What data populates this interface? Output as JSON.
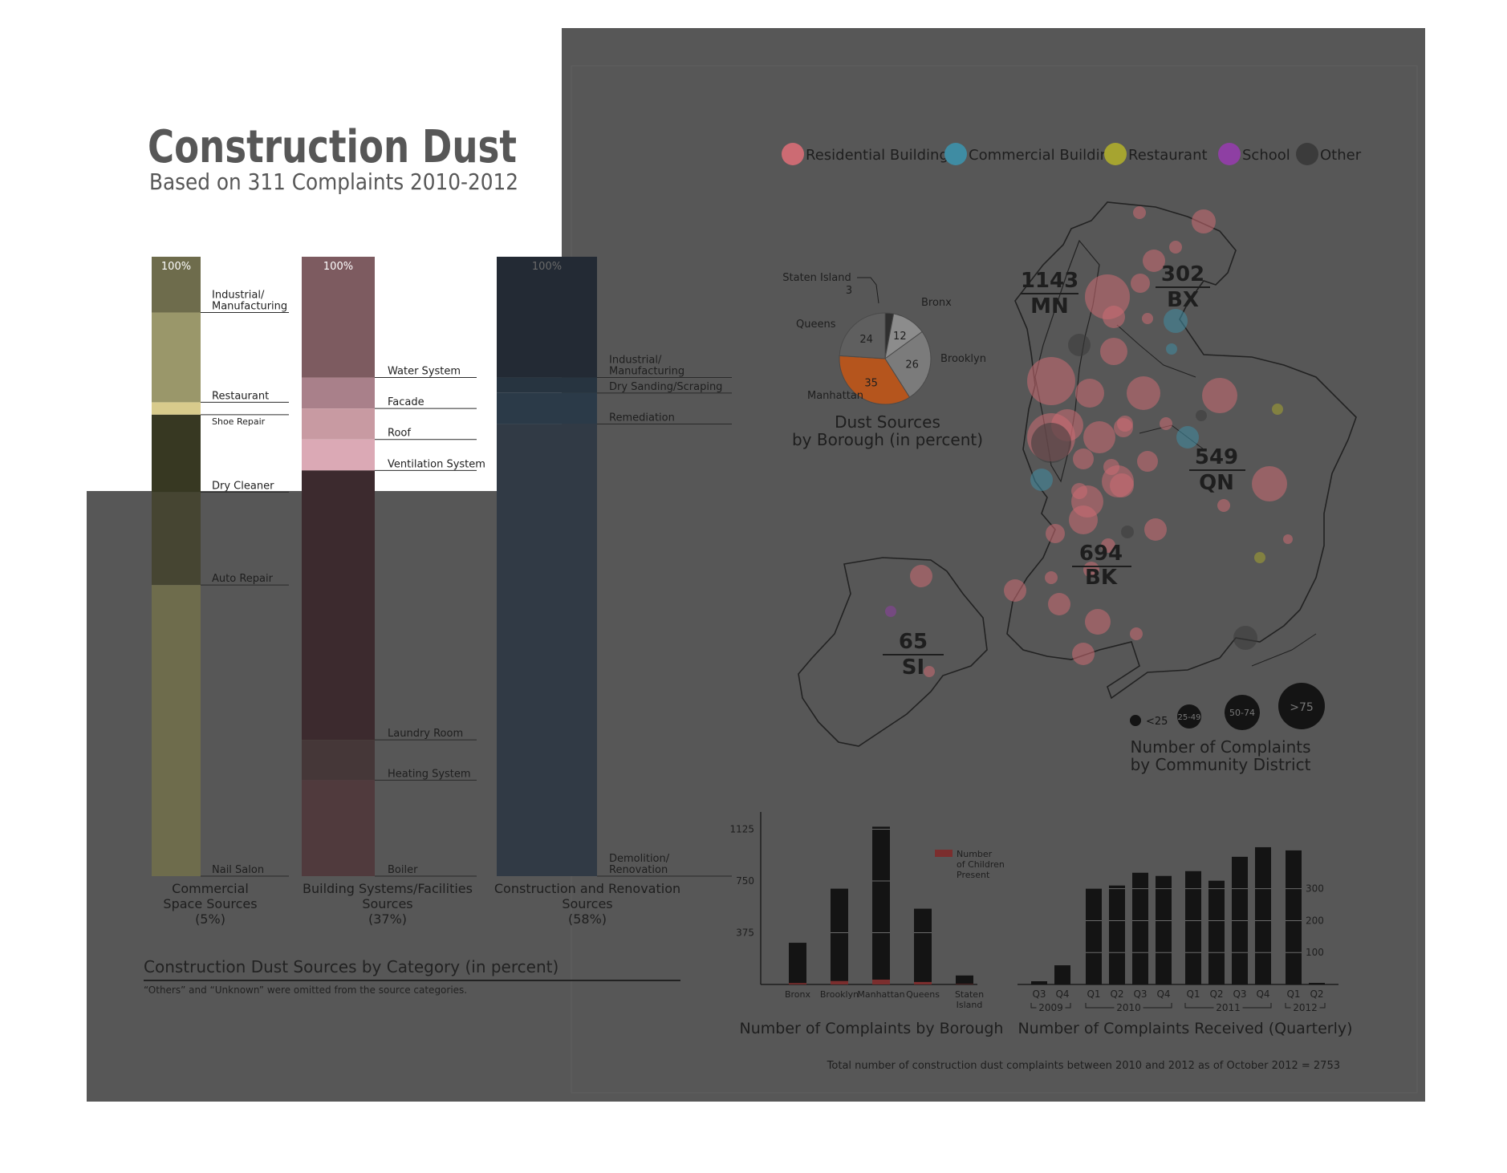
{
  "header": {
    "title": "Construction Dust",
    "subtitle": "Based on 311 Complaints 2010-2012"
  },
  "colors": {
    "panel": "#575757",
    "commercial": [
      "#6e6c4c",
      "#9a976a",
      "#d8cb8c",
      "#373822",
      "#464532"
    ],
    "building": [
      "#7d5b60",
      "#a9808a",
      "#c89aa2",
      "#dba9b5",
      "#3c2a2e",
      "#453738",
      "#503a3d"
    ],
    "construction": [
      "#232a34",
      "#273440",
      "#2b3a48",
      "#313a45"
    ],
    "pie": {
      "staten_island": "#2f2f2f",
      "bronx": "#8c8c8c",
      "brooklyn": "#7b7b7b",
      "manhattan": "#b5551d",
      "queens": "#5f5f5f"
    },
    "legend": {
      "residential": "#cc6b73",
      "commercial": "#3f8ca3",
      "restaurant": "#a6a430",
      "school": "#8e3fa3",
      "other": "#3b3b3b"
    },
    "bars": "#141414",
    "children": "#7b2e2e"
  },
  "left_section": {
    "title": "Construction Dust Sources by Category (in percent)",
    "note": "“Others” and “Unknown” were omitted from the source categories."
  },
  "map": {
    "legend": [
      "Residential Building",
      "Commercial Building",
      "Restaurant",
      "School",
      "Other"
    ],
    "boroughs": [
      {
        "count": "1143",
        "abbr": "MN"
      },
      {
        "count": "302",
        "abbr": "BX"
      },
      {
        "count": "549",
        "abbr": "QN"
      },
      {
        "count": "694",
        "abbr": "BK"
      },
      {
        "count": "65",
        "abbr": "SI"
      }
    ],
    "size_legend": [
      "<25",
      "25-49",
      "50-74",
      ">75"
    ],
    "caption_line1": "Number of Complaints",
    "caption_line2": "by Community District"
  },
  "footer": {
    "total": "Total number of construction dust complaints between 2010 and 2012 as of October 2012 = 2753"
  },
  "chart_data": [
    {
      "type": "bar",
      "title": "Construction Dust Sources by Category (in percent)",
      "stacked": true,
      "percent_label": "100%",
      "columns": [
        {
          "label_lines": [
            "Commercial",
            "Space Sources",
            "(5%)"
          ],
          "segments": [
            {
              "label": "Industrial/ Manufacturing",
              "value": 9
            },
            {
              "label": "Restaurant",
              "value": 14.5
            },
            {
              "label": "Shoe Repair",
              "value": 2
            },
            {
              "label": "Dry Cleaner",
              "value": 12.5
            },
            {
              "label": "Auto Repair",
              "value": 15
            },
            {
              "label": "Nail Salon",
              "value": 47
            }
          ]
        },
        {
          "label_lines": [
            "Building Systems/Facilities",
            "Sources",
            "(37%)"
          ],
          "segments": [
            {
              "label": "Water System",
              "value": 19.5
            },
            {
              "label": "Facade",
              "value": 5
            },
            {
              "label": "Roof",
              "value": 5
            },
            {
              "label": "Ventilation System",
              "value": 5
            },
            {
              "label": "Laundry Room",
              "value": 43.5
            },
            {
              "label": "Heating System",
              "value": 6.5
            },
            {
              "label": "Boiler",
              "value": 15.5
            }
          ]
        },
        {
          "label_lines": [
            "Construction and Renovation",
            "Sources",
            "(58%)"
          ],
          "segments": [
            {
              "label": "Industrial/ Manufacturing",
              "value": 19.5
            },
            {
              "label": "Dry Sanding/Scraping",
              "value": 2.5
            },
            {
              "label": "Remediation",
              "value": 5
            },
            {
              "label": "Demolition/ Renovation",
              "value": 73
            }
          ]
        }
      ]
    },
    {
      "type": "pie",
      "title_lines": [
        "Dust Sources",
        "by Borough (in percent)"
      ],
      "slices": [
        {
          "label": "Staten Island",
          "value": 3
        },
        {
          "label": "Bronx",
          "value": 12
        },
        {
          "label": "Brooklyn",
          "value": 26
        },
        {
          "label": "Manhattan",
          "value": 35
        },
        {
          "label": "Queens",
          "value": 24
        }
      ]
    },
    {
      "type": "bar",
      "title": "Number of Complaints by Borough",
      "categories": [
        "Bronx",
        "Brooklyn",
        "Manhattan",
        "Queens",
        "Staten Island"
      ],
      "series": [
        {
          "name": "Complaints",
          "values": [
            302,
            694,
            1143,
            549,
            65
          ]
        },
        {
          "name": "Number of Children Present",
          "values": [
            10,
            25,
            35,
            18,
            3
          ]
        }
      ],
      "yticks": [
        "375",
        "750",
        "1125"
      ],
      "ylim": [
        0,
        1250
      ],
      "legend_text": "Number of Children Present"
    },
    {
      "type": "bar",
      "title": "Number of Complaints Received (Quarterly)",
      "categories": [
        "Q3",
        "Q4",
        "Q1",
        "Q2",
        "Q3",
        "Q4",
        "Q1",
        "Q2",
        "Q3",
        "Q4",
        "Q1",
        "Q2"
      ],
      "years": [
        "2009",
        "2010",
        "2011",
        "2012"
      ],
      "values": [
        10,
        60,
        300,
        310,
        350,
        340,
        355,
        325,
        400,
        430,
        420,
        5
      ],
      "yticks": [
        "100",
        "200",
        "300"
      ],
      "ylim": [
        0,
        450
      ]
    }
  ]
}
